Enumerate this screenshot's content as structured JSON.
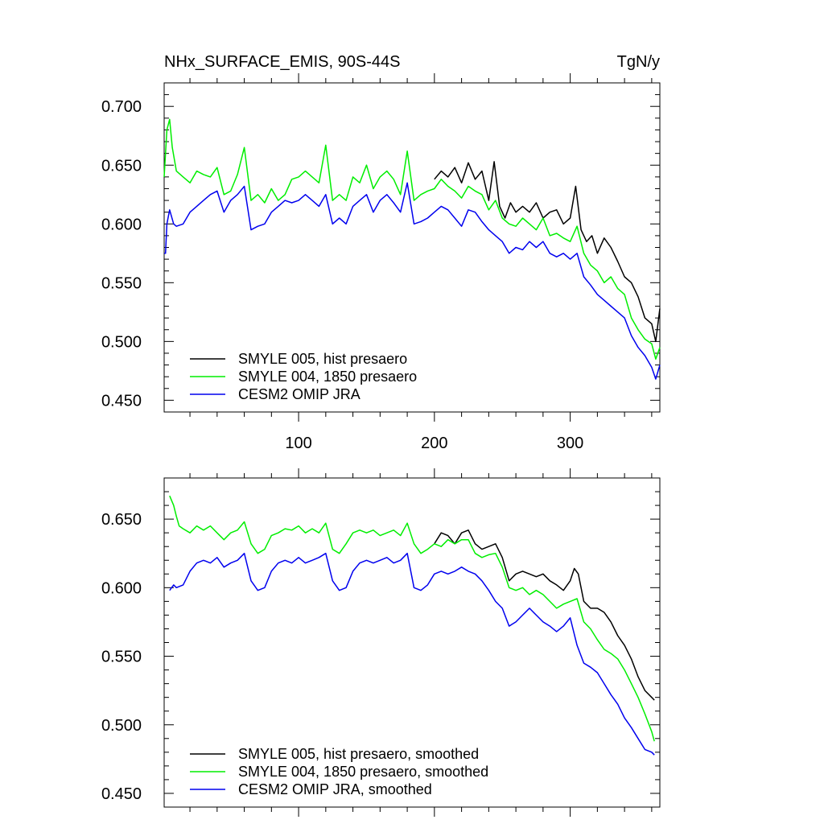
{
  "chart_data": [
    {
      "type": "line",
      "title": "NHx_SURFACE_EMIS, 90S-44S",
      "units": "TgN/y",
      "xlim": [
        1,
        366
      ],
      "ylim": [
        0.44,
        0.72
      ],
      "xticks": [
        100,
        200,
        300
      ],
      "xtick_labels": [
        "100",
        "200",
        "300"
      ],
      "yticks": [
        0.45,
        0.5,
        0.55,
        0.6,
        0.65,
        0.7
      ],
      "ytick_labels": [
        "0.450",
        "0.500",
        "0.550",
        "0.600",
        "0.650",
        "0.700"
      ],
      "legend": "bottom-left",
      "series": [
        {
          "name": "SMYLE 005, hist presaero",
          "color": "#000000",
          "x": [
            200,
            205,
            210,
            215,
            220,
            225,
            230,
            235,
            240,
            244,
            248,
            252,
            256,
            260,
            265,
            270,
            275,
            280,
            285,
            290,
            295,
            300,
            304,
            308,
            312,
            316,
            320,
            325,
            330,
            335,
            340,
            345,
            350,
            355,
            360,
            363,
            366
          ],
          "values": [
            0.638,
            0.645,
            0.64,
            0.648,
            0.635,
            0.652,
            0.638,
            0.645,
            0.62,
            0.653,
            0.615,
            0.605,
            0.618,
            0.61,
            0.615,
            0.61,
            0.618,
            0.605,
            0.61,
            0.612,
            0.6,
            0.605,
            0.632,
            0.595,
            0.585,
            0.59,
            0.575,
            0.588,
            0.58,
            0.568,
            0.555,
            0.55,
            0.538,
            0.52,
            0.515,
            0.5,
            0.528
          ]
        },
        {
          "name": "SMYLE 004, 1850 presaero",
          "color": "#00ee00",
          "x": [
            1,
            3,
            5,
            7,
            10,
            15,
            20,
            25,
            30,
            35,
            40,
            45,
            50,
            55,
            60,
            65,
            70,
            75,
            80,
            85,
            90,
            95,
            100,
            105,
            110,
            115,
            120,
            125,
            130,
            135,
            140,
            145,
            150,
            155,
            160,
            165,
            170,
            175,
            180,
            185,
            190,
            195,
            200,
            205,
            210,
            215,
            220,
            225,
            230,
            235,
            240,
            245,
            250,
            255,
            260,
            265,
            270,
            275,
            280,
            285,
            290,
            295,
            300,
            305,
            310,
            315,
            320,
            325,
            330,
            335,
            340,
            345,
            350,
            355,
            360,
            363,
            366
          ],
          "values": [
            0.64,
            0.68,
            0.689,
            0.665,
            0.645,
            0.64,
            0.635,
            0.645,
            0.642,
            0.64,
            0.648,
            0.625,
            0.628,
            0.642,
            0.665,
            0.62,
            0.625,
            0.618,
            0.63,
            0.62,
            0.625,
            0.638,
            0.64,
            0.645,
            0.64,
            0.635,
            0.667,
            0.62,
            0.625,
            0.62,
            0.64,
            0.635,
            0.65,
            0.63,
            0.64,
            0.645,
            0.638,
            0.625,
            0.662,
            0.62,
            0.625,
            0.628,
            0.63,
            0.638,
            0.632,
            0.628,
            0.622,
            0.632,
            0.628,
            0.625,
            0.612,
            0.62,
            0.605,
            0.6,
            0.598,
            0.605,
            0.6,
            0.595,
            0.605,
            0.59,
            0.592,
            0.588,
            0.585,
            0.598,
            0.575,
            0.565,
            0.56,
            0.55,
            0.555,
            0.545,
            0.54,
            0.52,
            0.51,
            0.502,
            0.498,
            0.485,
            0.495
          ]
        },
        {
          "name": "CESM2 OMIP JRA",
          "color": "#0000ee",
          "x": [
            1,
            2,
            3,
            5,
            8,
            10,
            15,
            20,
            25,
            30,
            35,
            40,
            45,
            50,
            55,
            60,
            65,
            70,
            75,
            80,
            85,
            90,
            95,
            100,
            105,
            110,
            115,
            120,
            125,
            130,
            135,
            140,
            145,
            150,
            155,
            160,
            165,
            170,
            175,
            180,
            185,
            190,
            195,
            200,
            205,
            210,
            215,
            220,
            225,
            230,
            235,
            240,
            245,
            250,
            255,
            260,
            265,
            270,
            275,
            280,
            285,
            290,
            295,
            300,
            305,
            310,
            315,
            320,
            325,
            330,
            335,
            340,
            345,
            350,
            355,
            360,
            363,
            366
          ],
          "values": [
            0.575,
            0.575,
            0.6,
            0.612,
            0.6,
            0.598,
            0.6,
            0.61,
            0.615,
            0.62,
            0.625,
            0.628,
            0.61,
            0.62,
            0.625,
            0.632,
            0.595,
            0.598,
            0.6,
            0.61,
            0.615,
            0.62,
            0.618,
            0.62,
            0.625,
            0.62,
            0.615,
            0.625,
            0.6,
            0.605,
            0.6,
            0.615,
            0.62,
            0.625,
            0.61,
            0.62,
            0.625,
            0.618,
            0.61,
            0.635,
            0.6,
            0.602,
            0.605,
            0.61,
            0.615,
            0.612,
            0.605,
            0.598,
            0.612,
            0.61,
            0.602,
            0.595,
            0.59,
            0.585,
            0.575,
            0.58,
            0.578,
            0.585,
            0.58,
            0.585,
            0.575,
            0.572,
            0.575,
            0.57,
            0.575,
            0.555,
            0.548,
            0.54,
            0.535,
            0.53,
            0.525,
            0.52,
            0.505,
            0.495,
            0.488,
            0.478,
            0.468,
            0.48
          ]
        }
      ]
    },
    {
      "type": "line",
      "title": "",
      "xlim": [
        1,
        366
      ],
      "ylim": [
        0.44,
        0.68
      ],
      "xticks": [
        100,
        200,
        300
      ],
      "yticks": [
        0.45,
        0.5,
        0.55,
        0.6,
        0.65
      ],
      "ytick_labels": [
        "0.450",
        "0.500",
        "0.550",
        "0.600",
        "0.650"
      ],
      "legend": "bottom-left",
      "series": [
        {
          "name": "SMYLE 005, hist presaero, smoothed",
          "color": "#000000",
          "x": [
            200,
            205,
            210,
            215,
            220,
            225,
            230,
            235,
            240,
            245,
            250,
            255,
            260,
            265,
            270,
            275,
            280,
            285,
            290,
            295,
            300,
            303,
            306,
            310,
            315,
            320,
            325,
            330,
            335,
            340,
            345,
            350,
            355,
            360,
            362
          ],
          "values": [
            0.632,
            0.64,
            0.638,
            0.632,
            0.64,
            0.642,
            0.632,
            0.628,
            0.63,
            0.632,
            0.622,
            0.605,
            0.61,
            0.612,
            0.61,
            0.608,
            0.61,
            0.605,
            0.602,
            0.598,
            0.605,
            0.614,
            0.61,
            0.59,
            0.585,
            0.585,
            0.582,
            0.575,
            0.565,
            0.558,
            0.548,
            0.535,
            0.525,
            0.52,
            0.518
          ]
        },
        {
          "name": "SMYLE 004, 1850 presaero, smoothed",
          "color": "#00ee00",
          "x": [
            5,
            8,
            10,
            12,
            15,
            20,
            25,
            30,
            35,
            40,
            45,
            50,
            55,
            60,
            65,
            70,
            75,
            80,
            85,
            90,
            95,
            100,
            105,
            110,
            115,
            120,
            125,
            130,
            135,
            140,
            145,
            150,
            155,
            160,
            165,
            170,
            175,
            180,
            185,
            190,
            195,
            200,
            205,
            210,
            215,
            220,
            225,
            230,
            235,
            240,
            245,
            250,
            255,
            260,
            265,
            270,
            275,
            280,
            285,
            290,
            295,
            300,
            305,
            310,
            315,
            320,
            325,
            330,
            335,
            340,
            345,
            350,
            355,
            360,
            362
          ],
          "values": [
            0.667,
            0.66,
            0.652,
            0.645,
            0.643,
            0.64,
            0.645,
            0.642,
            0.645,
            0.64,
            0.635,
            0.64,
            0.642,
            0.648,
            0.632,
            0.625,
            0.628,
            0.638,
            0.64,
            0.643,
            0.642,
            0.645,
            0.64,
            0.643,
            0.64,
            0.647,
            0.628,
            0.625,
            0.632,
            0.64,
            0.642,
            0.64,
            0.642,
            0.638,
            0.64,
            0.642,
            0.638,
            0.647,
            0.632,
            0.625,
            0.628,
            0.632,
            0.63,
            0.635,
            0.632,
            0.635,
            0.635,
            0.625,
            0.622,
            0.624,
            0.625,
            0.615,
            0.6,
            0.598,
            0.6,
            0.595,
            0.598,
            0.595,
            0.59,
            0.585,
            0.588,
            0.59,
            0.592,
            0.575,
            0.57,
            0.562,
            0.555,
            0.552,
            0.548,
            0.54,
            0.53,
            0.52,
            0.508,
            0.495,
            0.488
          ]
        },
        {
          "name": "CESM2 OMIP JRA, smoothed",
          "color": "#0000ee",
          "x": [
            5,
            8,
            10,
            15,
            20,
            25,
            30,
            35,
            40,
            45,
            50,
            55,
            60,
            65,
            70,
            75,
            80,
            85,
            90,
            95,
            100,
            105,
            110,
            115,
            120,
            125,
            130,
            135,
            140,
            145,
            150,
            155,
            160,
            165,
            170,
            175,
            180,
            185,
            190,
            195,
            200,
            205,
            210,
            215,
            220,
            225,
            230,
            235,
            240,
            245,
            250,
            255,
            260,
            265,
            270,
            275,
            280,
            285,
            290,
            295,
            300,
            305,
            310,
            315,
            320,
            325,
            330,
            335,
            340,
            345,
            350,
            355,
            360,
            362
          ],
          "values": [
            0.598,
            0.602,
            0.6,
            0.602,
            0.612,
            0.618,
            0.62,
            0.618,
            0.622,
            0.615,
            0.618,
            0.62,
            0.625,
            0.605,
            0.598,
            0.6,
            0.612,
            0.618,
            0.62,
            0.618,
            0.622,
            0.618,
            0.62,
            0.622,
            0.625,
            0.605,
            0.598,
            0.6,
            0.612,
            0.618,
            0.62,
            0.618,
            0.62,
            0.622,
            0.618,
            0.62,
            0.625,
            0.6,
            0.598,
            0.602,
            0.61,
            0.612,
            0.61,
            0.612,
            0.615,
            0.612,
            0.61,
            0.605,
            0.598,
            0.59,
            0.585,
            0.572,
            0.575,
            0.58,
            0.585,
            0.58,
            0.575,
            0.572,
            0.568,
            0.572,
            0.578,
            0.558,
            0.545,
            0.542,
            0.538,
            0.53,
            0.522,
            0.515,
            0.505,
            0.498,
            0.49,
            0.482,
            0.48,
            0.478
          ]
        }
      ]
    }
  ]
}
